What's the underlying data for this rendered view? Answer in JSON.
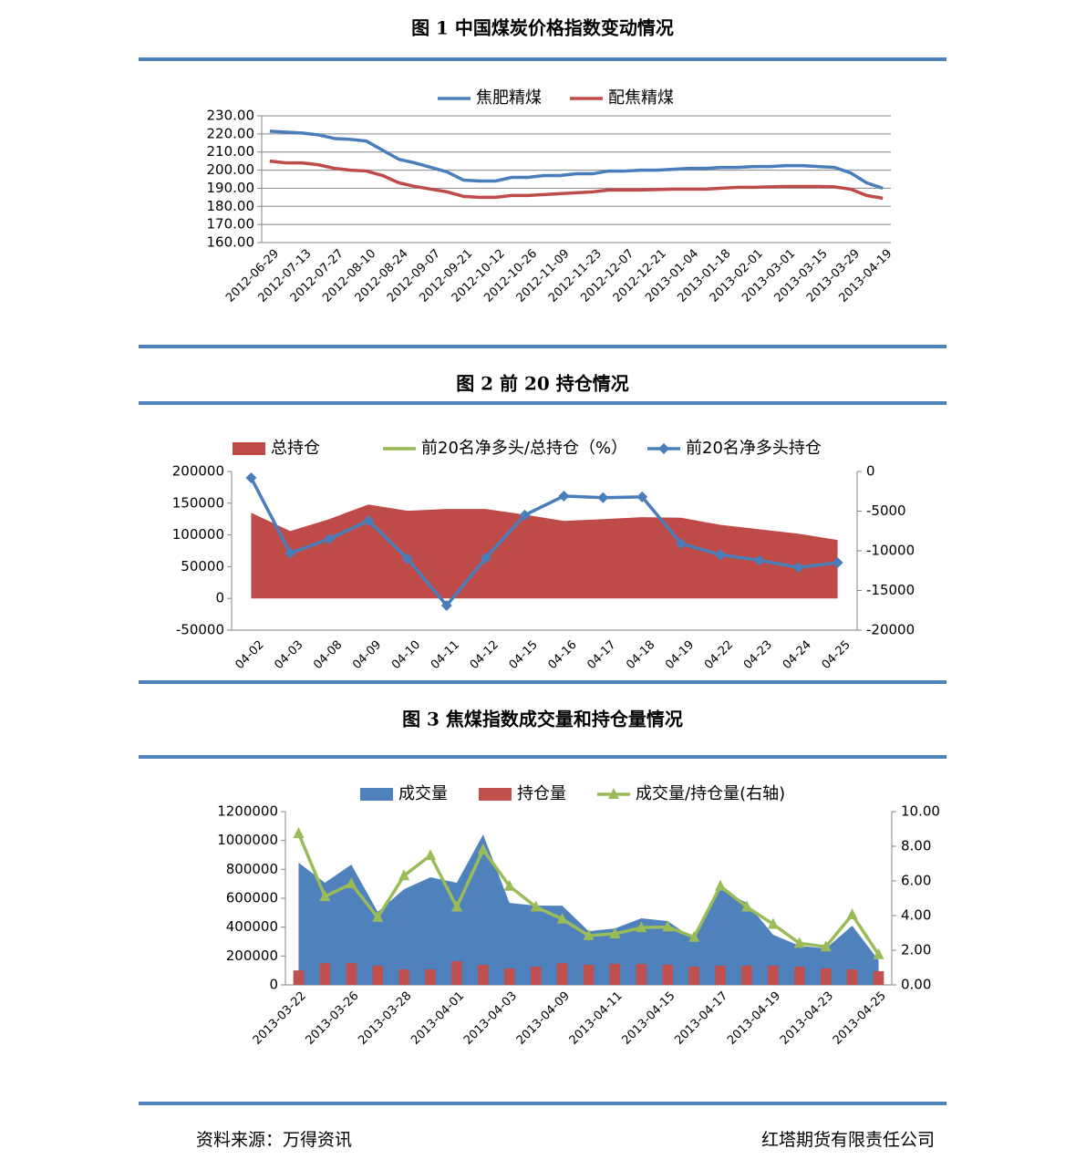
{
  "chart_data": [
    {
      "type": "line",
      "title": "图 1 中国煤炭价格指数变动情况",
      "categories": [
        "2012-06-29",
        null,
        "2012-07-13",
        null,
        "2012-07-27",
        null,
        "2012-08-10",
        null,
        "2012-08-24",
        null,
        "2012-09-07",
        null,
        "2012-09-21",
        null,
        "2012-10-12",
        null,
        "2012-10-26",
        null,
        "2012-11-09",
        null,
        "2012-11-23",
        null,
        "2012-12-07",
        null,
        "2012-12-21",
        null,
        "2013-01-04",
        null,
        "2013-01-18",
        null,
        "2013-02-01",
        null,
        "2013-03-01",
        null,
        "2013-03-15",
        null,
        "2013-03-29",
        null,
        "2013-04-19"
      ],
      "series": [
        {
          "name": "焦肥精煤",
          "color": "#4a7ebb",
          "type": "line",
          "values": [
            221.5,
            221,
            220.5,
            219.5,
            217.5,
            217,
            216,
            211,
            206,
            204,
            201.5,
            199,
            194.5,
            194,
            194,
            196,
            196,
            197,
            197,
            198,
            198,
            199.5,
            199.5,
            200,
            200,
            200.5,
            201,
            201,
            201.5,
            201.5,
            202,
            202,
            202.5,
            202.5,
            202,
            201.5,
            198.5,
            193,
            190
          ]
        },
        {
          "name": "配焦精煤",
          "color": "#be4b48",
          "type": "line",
          "values": [
            205,
            204,
            204,
            203,
            201,
            200,
            199.5,
            197,
            193,
            191,
            189.5,
            188,
            185.5,
            185,
            185,
            186,
            186,
            186.5,
            187,
            187.5,
            188,
            189,
            189,
            189,
            189.3,
            189.5,
            189.5,
            189.5,
            190,
            190.5,
            190.5,
            190.8,
            191,
            191,
            191,
            190.8,
            189.5,
            186,
            184.5
          ]
        }
      ],
      "ylim": [
        160,
        230
      ],
      "yticks": [
        {
          "value": 160,
          "label": "160.00"
        },
        {
          "value": 170,
          "label": "170.00"
        },
        {
          "value": 180,
          "label": "180.00"
        },
        {
          "value": 190,
          "label": "190.00"
        },
        {
          "value": 200,
          "label": "200.00"
        },
        {
          "value": 210,
          "label": "210.00"
        },
        {
          "value": 220,
          "label": "220.00"
        },
        {
          "value": 230,
          "label": "230.00"
        }
      ],
      "grid": true,
      "legend": "top"
    },
    {
      "type": "combo",
      "title": "图 2 前 20 持仓情况",
      "categories": [
        "04-02",
        "04-03",
        "04-08",
        "04-09",
        "04-10",
        "04-11",
        "04-12",
        "04-15",
        "04-16",
        "04-17",
        "04-18",
        "04-19",
        "04-22",
        "04-23",
        "04-24",
        "04-25"
      ],
      "series": [
        {
          "name": "总持仓",
          "color": "#be4b48",
          "type": "area",
          "values": [
            135000,
            106000,
            125000,
            148000,
            138000,
            141000,
            141000,
            132000,
            122000,
            125000,
            128000,
            127000,
            116000,
            109000,
            102000,
            92000
          ]
        },
        {
          "name": "前20名净多头/总持仓（%）",
          "color": "#98b954",
          "type": "line",
          "values": [
            null,
            null,
            null,
            null,
            null,
            null,
            null,
            null,
            null,
            null,
            null,
            null,
            null,
            null,
            null,
            null
          ]
        },
        {
          "name": "前20名净多头持仓",
          "color": "#4a7ebb",
          "type": "line",
          "marker": "diamond",
          "axis": "y2",
          "values": [
            -800,
            -10300,
            -8500,
            -6200,
            -11000,
            -16900,
            -10900,
            -5500,
            -3100,
            -3300,
            -3200,
            -9100,
            -10500,
            -11200,
            -12100,
            -11500
          ]
        }
      ],
      "ylim": [
        -50000,
        200000
      ],
      "yticks": [
        -50000,
        0,
        50000,
        100000,
        150000,
        200000
      ],
      "y2lim": [
        -20000,
        0
      ],
      "y2ticks": [
        -20000,
        -15000,
        -10000,
        -5000,
        0
      ],
      "grid": false,
      "legend": "top"
    },
    {
      "type": "combo",
      "title": "图 3 焦煤指数成交量和持仓量情况",
      "categories": [
        "2013-03-22",
        null,
        "2013-03-26",
        null,
        "2013-03-28",
        null,
        "2013-04-01",
        null,
        "2013-04-03",
        null,
        "2013-04-09",
        null,
        "2013-04-11",
        null,
        "2013-04-15",
        null,
        "2013-04-17",
        null,
        "2013-04-19",
        null,
        "2013-04-23",
        null,
        "2013-04-25"
      ],
      "series": [
        {
          "name": "成交量",
          "color": "#4f81bd",
          "type": "area",
          "values": [
            846000,
            707000,
            833000,
            505000,
            662000,
            745000,
            707000,
            1041000,
            568000,
            549000,
            549000,
            372000,
            391000,
            461000,
            442000,
            315000,
            662000,
            568000,
            347000,
            271000,
            252000,
            410000,
            170000
          ]
        },
        {
          "name": "持仓量",
          "color": "#c0504d",
          "type": "bar",
          "values": [
            100000,
            150000,
            150000,
            133000,
            107000,
            107000,
            164000,
            139000,
            114000,
            126000,
            150000,
            139000,
            145000,
            145000,
            139000,
            126000,
            133000,
            133000,
            133000,
            126000,
            114000,
            107000,
            95000
          ]
        },
        {
          "name": "成交量/持仓量(右轴)",
          "color": "#9bbb59",
          "type": "line",
          "marker": "triangle",
          "axis": "y2",
          "values": [
            8.74,
            5.1,
            5.84,
            3.9,
            6.3,
            7.47,
            4.5,
            7.8,
            5.7,
            4.5,
            3.8,
            2.85,
            2.95,
            3.3,
            3.35,
            2.75,
            5.7,
            4.5,
            3.5,
            2.4,
            2.2,
            4.05,
            1.75
          ]
        }
      ],
      "ylim": [
        0,
        1200000
      ],
      "yticks": [
        0,
        200000,
        400000,
        600000,
        800000,
        1000000,
        1200000
      ],
      "y2lim": [
        0,
        10
      ],
      "y2ticks": [
        {
          "value": 0,
          "label": "0.00"
        },
        {
          "value": 2,
          "label": "2.00"
        },
        {
          "value": 4,
          "label": "4.00"
        },
        {
          "value": 6,
          "label": "6.00"
        },
        {
          "value": 8,
          "label": "8.00"
        },
        {
          "value": 10,
          "label": "10.00"
        }
      ],
      "grid": false,
      "legend": "top"
    }
  ],
  "footer": {
    "source": "资料来源：万得资讯",
    "company": "红塔期货有限责任公司"
  }
}
